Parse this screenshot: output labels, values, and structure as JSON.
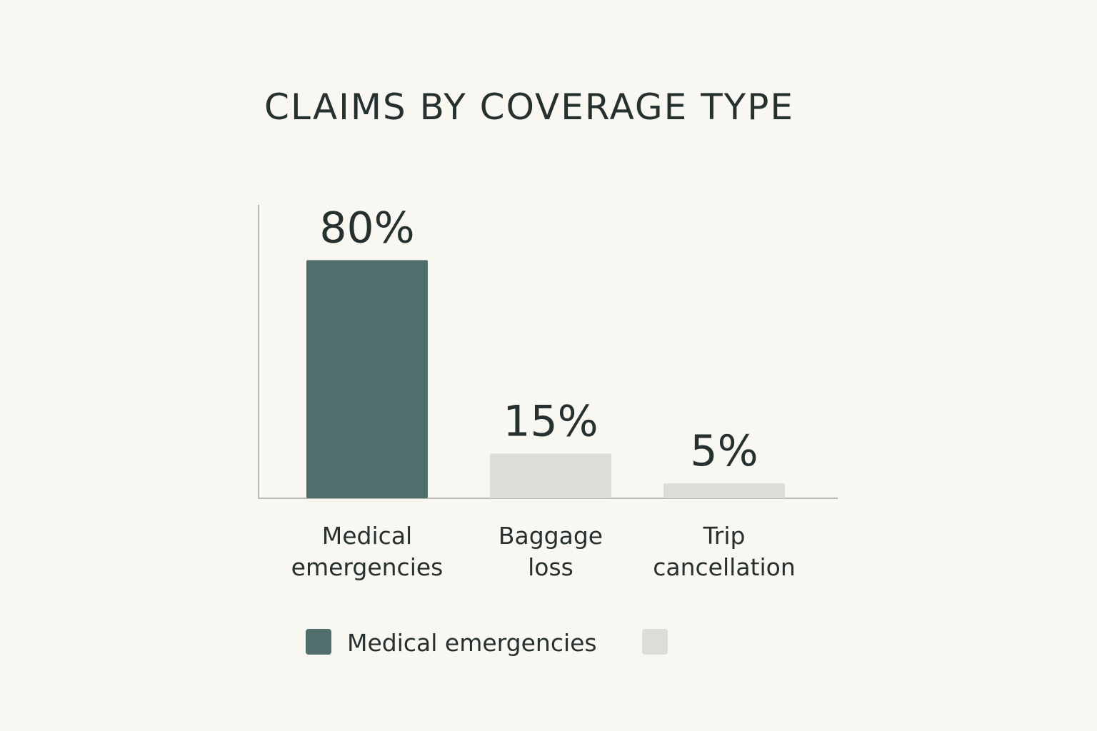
{
  "chart_data": {
    "type": "bar",
    "title": "CLAIMS BY COVERAGE TYPE",
    "xlabel": "",
    "ylabel": "",
    "categories": [
      [
        "Medical",
        "emergencies"
      ],
      [
        "Baggage",
        "loss"
      ],
      [
        "Trip",
        "cancellation"
      ]
    ],
    "values": [
      80,
      15,
      5
    ],
    "value_labels": [
      "80%",
      "15%",
      "5%"
    ],
    "ylim": [
      0,
      100
    ],
    "grid": false,
    "bar_colors": [
      "#526e6c",
      "#dddcd6",
      "#dddcd6"
    ],
    "legend": {
      "placement": "bottom",
      "entries": [
        {
          "label": "Medical emergencies",
          "color": "#526e6c"
        },
        {
          "label": "",
          "color": "#dddcd6"
        }
      ]
    }
  }
}
